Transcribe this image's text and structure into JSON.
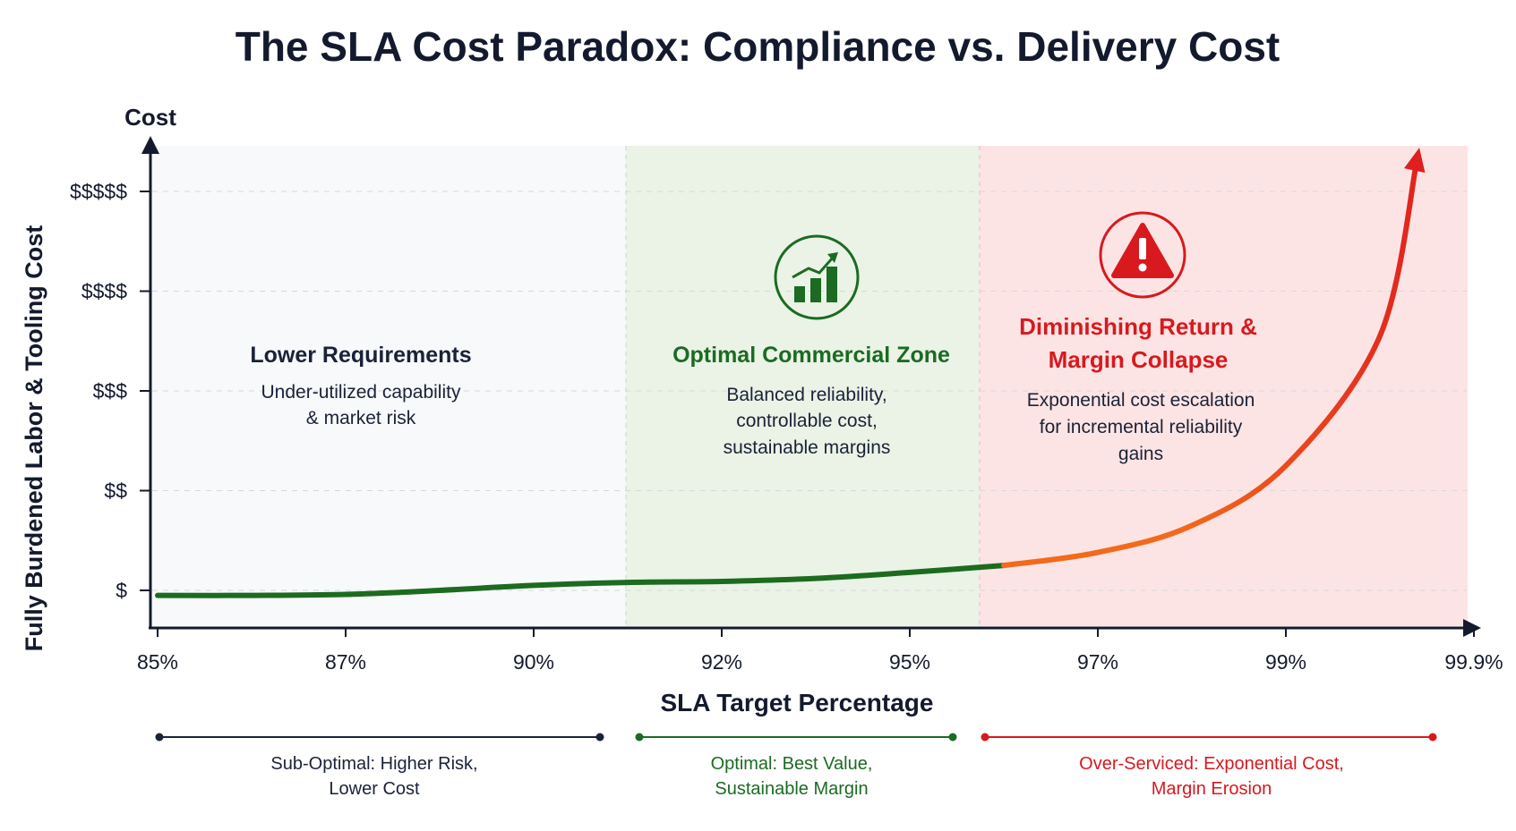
{
  "chart_data": {
    "type": "line",
    "title": "The SLA Cost Paradox: Compliance vs. Delivery Cost",
    "xlabel": "SLA Target Percentage",
    "ylabel": "Fully Burdened Labor & Tooling Cost",
    "y_axis_caption": "Cost",
    "x_ticks": [
      "85%",
      "87%",
      "90%",
      "92%",
      "95%",
      "97%",
      "99%",
      "99.9%"
    ],
    "y_ticks": [
      "$",
      "$$",
      "$$$",
      "$$$$",
      "$$$$$"
    ],
    "grid": "horizontal dashed",
    "series": [
      {
        "x_index": [
          0,
          0.5,
          1,
          1.5,
          2,
          2.5,
          3,
          3.5,
          4,
          4.5,
          5,
          5.5,
          6,
          6.5,
          6.7
        ],
        "y_level": [
          -0.05,
          -0.05,
          -0.04,
          0.0,
          0.05,
          0.08,
          0.09,
          0.12,
          0.18,
          0.25,
          0.38,
          0.65,
          1.25,
          2.55,
          4.35
        ]
      }
    ],
    "zones": [
      {
        "id": "lower",
        "heading": "Lower Requirements",
        "body": [
          "Under-utilized capability",
          "& market risk"
        ],
        "color": "#1a2238",
        "fill": "#f8f9fa"
      },
      {
        "id": "optimal",
        "heading": "Optimal Commercial Zone",
        "body": [
          "Balanced reliability,",
          "controllable cost,",
          "sustainable margins"
        ],
        "color": "#1b6b22",
        "fill": "#eaf3e6",
        "icon": "growth-chart-icon"
      },
      {
        "id": "diminishing",
        "heading": [
          "Diminishing Return &",
          "Margin Collapse"
        ],
        "body": [
          "Exponential cost escalation",
          "for incremental reliability",
          "gains"
        ],
        "color": "#d8191e",
        "fill": "#fde4e4",
        "icon": "warning-icon"
      }
    ],
    "legend_ranges": [
      {
        "label": [
          "Sub-Optimal: Higher Risk,",
          "Lower Cost"
        ],
        "color": "#1a2238"
      },
      {
        "label": [
          "Optimal: Best Value,",
          "Sustainable Margin"
        ],
        "color": "#1b6b22"
      },
      {
        "label": [
          "Over-Serviced: Exponential Cost,",
          "Margin Erosion"
        ],
        "color": "#d8191e"
      }
    ],
    "colors": {
      "axis": "#141a2e",
      "grid": "#d8d8d8",
      "curve_green": "#1c6b1f",
      "curve_orange": "#f26a1b",
      "curve_red": "#e01f1f"
    }
  }
}
